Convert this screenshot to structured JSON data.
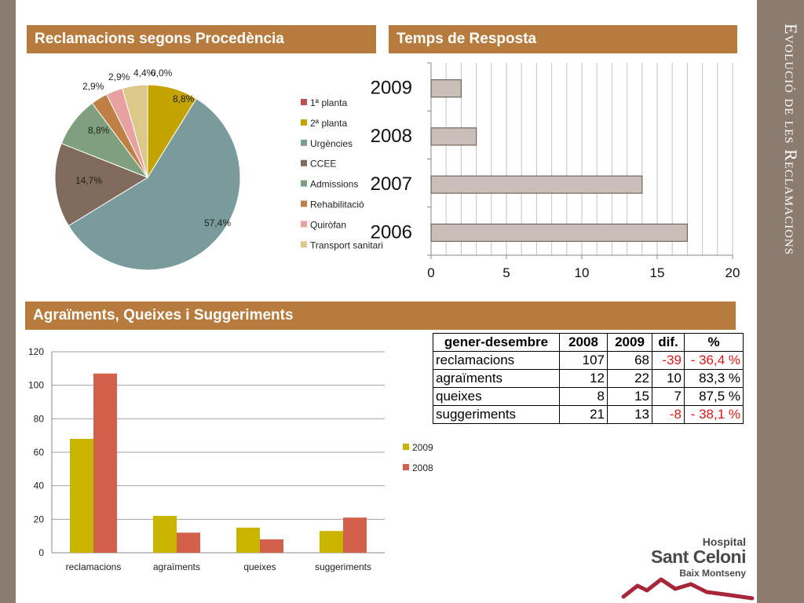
{
  "side_title": "Evolució de les Reclamacions",
  "headers": {
    "pie": "Reclamacions segons Procedència",
    "response": "Temps de Resposta",
    "grouped": "Agraïments, Queixes i Suggeriments"
  },
  "colors": {
    "header_bg": "#b87b3e",
    "side_band": "#8c7b6f",
    "negative_text": "#e0161a",
    "series_2009": "#c9b400",
    "series_2008": "#d2604a"
  },
  "chart_data": [
    {
      "type": "pie",
      "title": "Reclamacions segons Procedència",
      "slices": [
        {
          "label": "1ª planta",
          "value": 0.0,
          "display": "0,0%",
          "color": "#c0504d"
        },
        {
          "label": "2ª planta",
          "value": 8.8,
          "display": "8,8%",
          "color": "#c2a300"
        },
        {
          "label": "Urgències",
          "value": 57.4,
          "display": "57,4%",
          "color": "#7a9b9b"
        },
        {
          "label": "CCEE",
          "value": 14.7,
          "display": "14,7%",
          "color": "#7f6a5c"
        },
        {
          "label": "Admissions",
          "value": 8.8,
          "display": "8,8%",
          "color": "#7f9f7f"
        },
        {
          "label": "Rehabilitació",
          "value": 2.9,
          "display": "2,9%",
          "color": "#c07f45"
        },
        {
          "label": "Quiròfan",
          "value": 2.9,
          "display": "2,9%",
          "color": "#e8a0a0"
        },
        {
          "label": "Transport sanitari",
          "value": 4.4,
          "display": "4,4%",
          "color": "#dcc98a"
        }
      ],
      "legend": "right"
    },
    {
      "type": "bar",
      "orientation": "horizontal",
      "title": "Temps de Resposta",
      "categories": [
        "2006",
        "2007",
        "2008",
        "2009"
      ],
      "values": [
        17,
        14,
        3,
        2
      ],
      "xlim": [
        0,
        20
      ],
      "xticks": [
        "0",
        "5",
        "10",
        "15",
        "20"
      ],
      "grid": true,
      "bar_color": "#c9bfb8"
    },
    {
      "type": "bar",
      "title": "Agraïments, Queixes i Suggeriments",
      "categories": [
        "reclamacions",
        "agraïments",
        "queixes",
        "suggeriments"
      ],
      "series": [
        {
          "name": "2009",
          "values": [
            68,
            22,
            15,
            13
          ]
        },
        {
          "name": "2008",
          "values": [
            107,
            12,
            8,
            21
          ]
        }
      ],
      "ylim": [
        0,
        120
      ],
      "yticks": [
        "0",
        "20",
        "40",
        "60",
        "80",
        "100",
        "120"
      ],
      "grid": true,
      "legend": "right"
    },
    {
      "type": "table",
      "columns": [
        "gener-desembre",
        "2008",
        "2009",
        "dif.",
        "%"
      ],
      "rows": [
        {
          "label": "reclamacions",
          "y2008": "107",
          "y2009": "68",
          "dif": "-39",
          "pct": "- 36,4 %",
          "negative": true
        },
        {
          "label": "agraïments",
          "y2008": "12",
          "y2009": "22",
          "dif": "10",
          "pct": "83,3 %",
          "negative": false
        },
        {
          "label": "queixes",
          "y2008": "8",
          "y2009": "15",
          "dif": "7",
          "pct": "87,5 %",
          "negative": false
        },
        {
          "label": "suggeriments",
          "y2008": "21",
          "y2009": "13",
          "dif": "-8",
          "pct": "- 38,1 %",
          "negative": true
        }
      ]
    }
  ],
  "logo": {
    "line1": "Hospital",
    "line2": "Sant Celoni",
    "line3": "Baix Montseny"
  }
}
